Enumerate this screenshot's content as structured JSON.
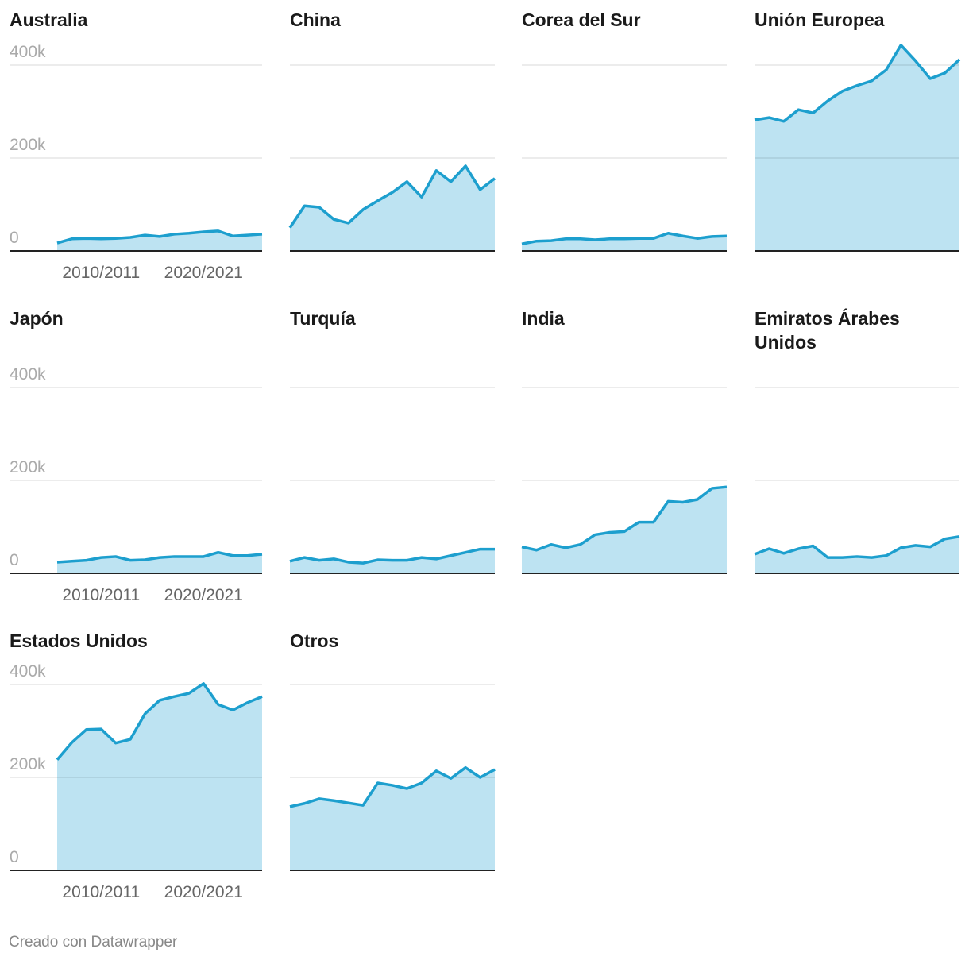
{
  "chart_data": {
    "type": "area",
    "color": "#1d9fce",
    "fill": "#bde3f2",
    "categories": [
      null,
      null,
      null,
      "2010/2011",
      null,
      null,
      null,
      null,
      null,
      null,
      "2020/2021",
      null,
      null,
      null,
      null
    ],
    "ylim": [
      0,
      400000
    ],
    "yticks": [
      {
        "value": 0,
        "label": "0"
      },
      {
        "value": 200000,
        "label": "200k"
      },
      {
        "value": 400000,
        "label": "400k"
      }
    ],
    "grid": true,
    "panels": [
      {
        "title": "Australia",
        "values": [
          17000,
          26000,
          27000,
          26000,
          27000,
          29000,
          34000,
          31000,
          36000,
          38000,
          41000,
          43000,
          32000,
          34000,
          36000
        ]
      },
      {
        "title": "China",
        "values": [
          50000,
          97000,
          94000,
          68000,
          60000,
          89000,
          108000,
          126000,
          149000,
          116000,
          173000,
          149000,
          183000,
          132000,
          156000
        ]
      },
      {
        "title": "Corea del Sur",
        "values": [
          15000,
          21000,
          22000,
          26000,
          26000,
          24000,
          26000,
          26000,
          27000,
          27000,
          38000,
          32000,
          27000,
          31000,
          32000
        ]
      },
      {
        "title": "Unión Europea",
        "values": [
          282000,
          287000,
          279000,
          304000,
          297000,
          323000,
          344000,
          356000,
          366000,
          390000,
          443000,
          409000,
          371000,
          383000,
          412000
        ]
      },
      {
        "title": "Japón",
        "values": [
          24000,
          26000,
          28000,
          34000,
          36000,
          28000,
          29000,
          34000,
          36000,
          36000,
          36000,
          45000,
          38000,
          38000,
          41000
        ]
      },
      {
        "title": "Turquía",
        "values": [
          26000,
          34000,
          28000,
          31000,
          24000,
          22000,
          29000,
          28000,
          28000,
          34000,
          31000,
          38000,
          45000,
          52000,
          52000
        ]
      },
      {
        "title": "India",
        "values": [
          57000,
          50000,
          62000,
          55000,
          62000,
          83000,
          88000,
          90000,
          110000,
          110000,
          155000,
          153000,
          159000,
          183000,
          186000
        ]
      },
      {
        "title": "Emiratos Árabes Unidos",
        "values": [
          41000,
          53000,
          43000,
          53000,
          59000,
          34000,
          34000,
          36000,
          34000,
          38000,
          55000,
          60000,
          57000,
          74000,
          79000
        ]
      },
      {
        "title": "Estados Unidos",
        "values": [
          238000,
          275000,
          303000,
          304000,
          274000,
          282000,
          337000,
          366000,
          374000,
          381000,
          402000,
          357000,
          345000,
          361000,
          374000
        ]
      },
      {
        "title": "Otros",
        "values": [
          137000,
          144000,
          154000,
          150000,
          145000,
          140000,
          188000,
          183000,
          176000,
          188000,
          214000,
          198000,
          221000,
          200000,
          217000
        ]
      }
    ]
  },
  "footer": "Creado con Datawrapper"
}
